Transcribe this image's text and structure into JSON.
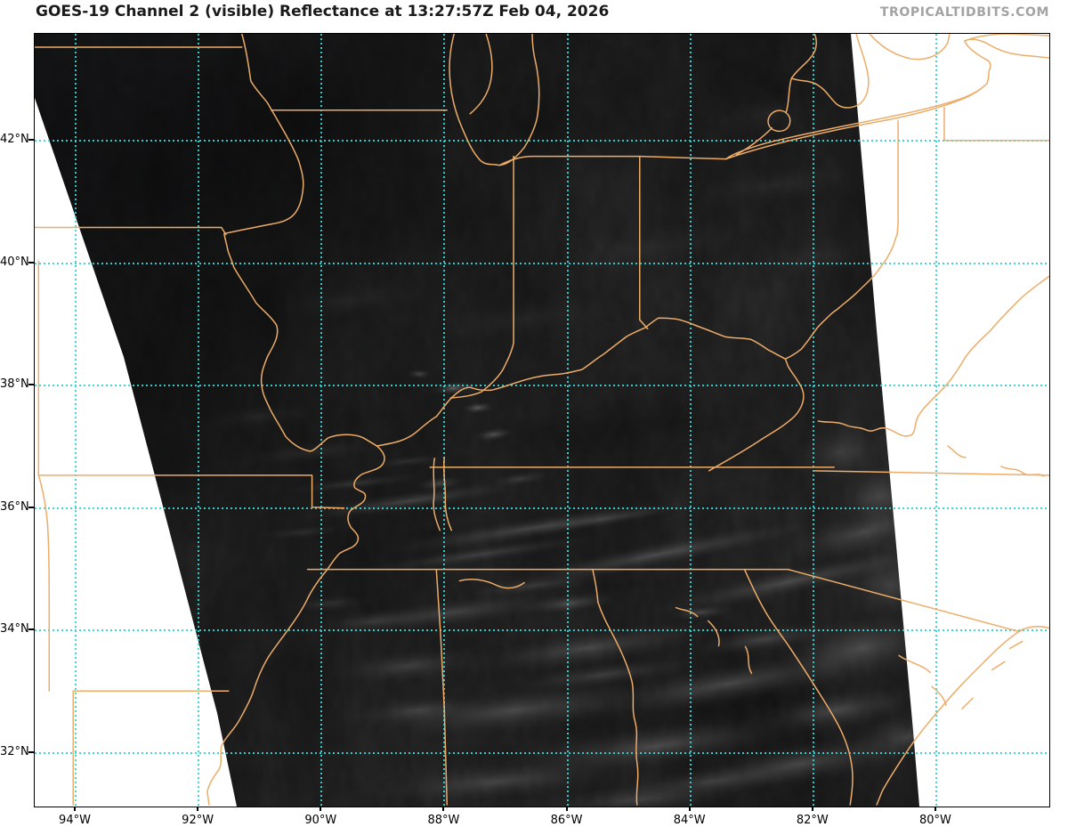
{
  "header": {
    "title": "GOES-19 Channel 2 (visible) Reflectance at 13:27:57Z Feb 04, 2026",
    "watermark": "TROPICALTIDBITS.COM"
  },
  "map": {
    "y_axis": {
      "labels": [
        "42°N",
        "40°N",
        "38°N",
        "36°N",
        "34°N",
        "32°N"
      ],
      "values": [
        42,
        40,
        38,
        36,
        34,
        32
      ]
    },
    "x_axis": {
      "labels": [
        "94°W",
        "92°W",
        "90°W",
        "88°W",
        "86°W",
        "84°W",
        "82°W",
        "80°W"
      ],
      "values": [
        94,
        92,
        90,
        88,
        86,
        84,
        82,
        80
      ]
    },
    "colors": {
      "gridline": "#35d3d3",
      "state_border": "#edac68",
      "title": "#1a1a1a",
      "watermark": "#a3a3a3",
      "background": "#ffffff",
      "satellite_base": "#1f1f1f",
      "axis": "#000000"
    }
  }
}
